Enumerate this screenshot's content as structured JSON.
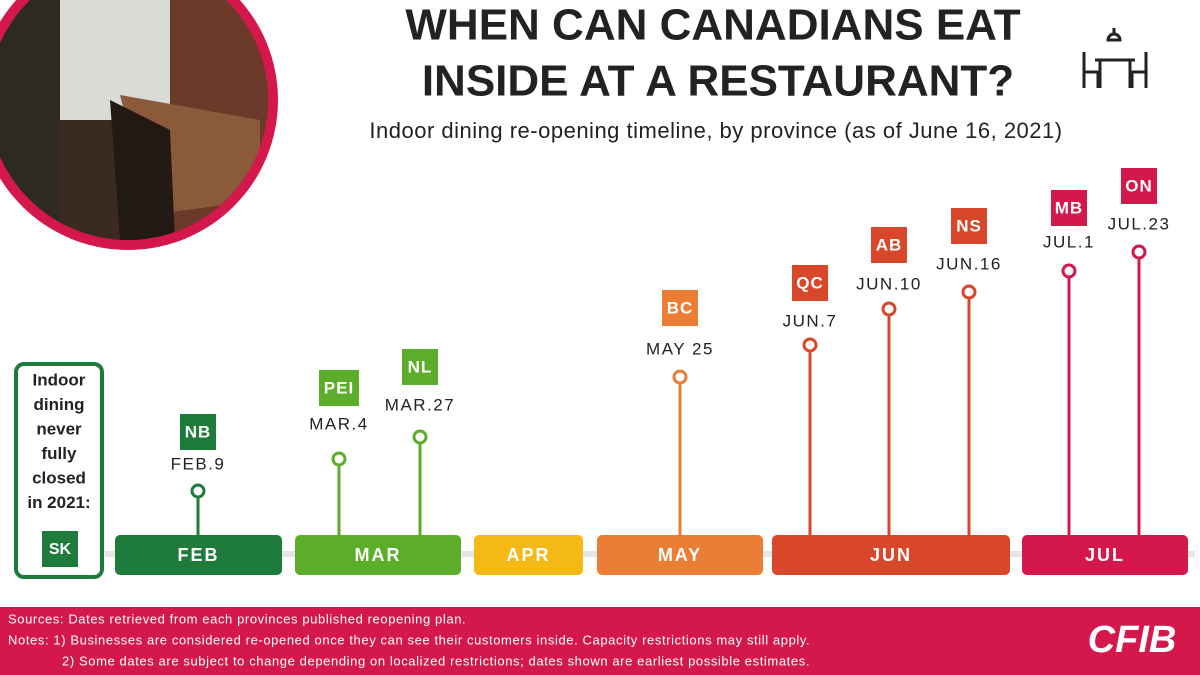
{
  "header": {
    "title_lines": [
      "WHEN CAN CANADIANS EAT",
      "INSIDE AT A RESTAURANT?"
    ],
    "subtitle": "Indoor dining re-opening timeline, by province (as of June 16, 2021)"
  },
  "never_closed": {
    "lines": [
      "Indoor",
      "dining",
      "never",
      "fully",
      "closed",
      "in 2021:"
    ],
    "province": "SK",
    "color": "#1e7b3c"
  },
  "months": [
    {
      "label": "FEB",
      "color": "#1e7b3c"
    },
    {
      "label": "MAR",
      "color": "#5cae2a"
    },
    {
      "label": "APR",
      "color": "#f5b915"
    },
    {
      "label": "MAY",
      "color": "#ec7d35"
    },
    {
      "label": "JUN",
      "color": "#d9472b"
    },
    {
      "label": "JUL",
      "color": "#d4184b"
    }
  ],
  "events": [
    {
      "province": "NB",
      "date": "FEB.9",
      "color": "#1e7b3c"
    },
    {
      "province": "PEI",
      "date": "MAR.4",
      "color": "#5cae2a"
    },
    {
      "province": "NL",
      "date": "MAR.27",
      "color": "#5cae2a"
    },
    {
      "province": "BC",
      "date": "MAY 25",
      "color": "#ec7d35"
    },
    {
      "province": "QC",
      "date": "JUN.7",
      "color": "#d9472b"
    },
    {
      "province": "AB",
      "date": "JUN.10",
      "color": "#d9472b"
    },
    {
      "province": "NS",
      "date": "JUN.16",
      "color": "#d9472b"
    },
    {
      "province": "MB",
      "date": "JUL.1",
      "color": "#d4184b"
    },
    {
      "province": "ON",
      "date": "JUL.23",
      "color": "#d4184b"
    }
  ],
  "footer": {
    "sources": "Sources: Dates retrieved from each provinces published reopening plan.",
    "note_1": "Notes: 1) Businesses are considered re-opened once they can see their customers inside. Capacity restrictions may still apply.",
    "note_2": "2) Some dates are subject to change depending on localized restrictions; dates shown are earliest possible estimates.",
    "logo": "CFIB"
  }
}
